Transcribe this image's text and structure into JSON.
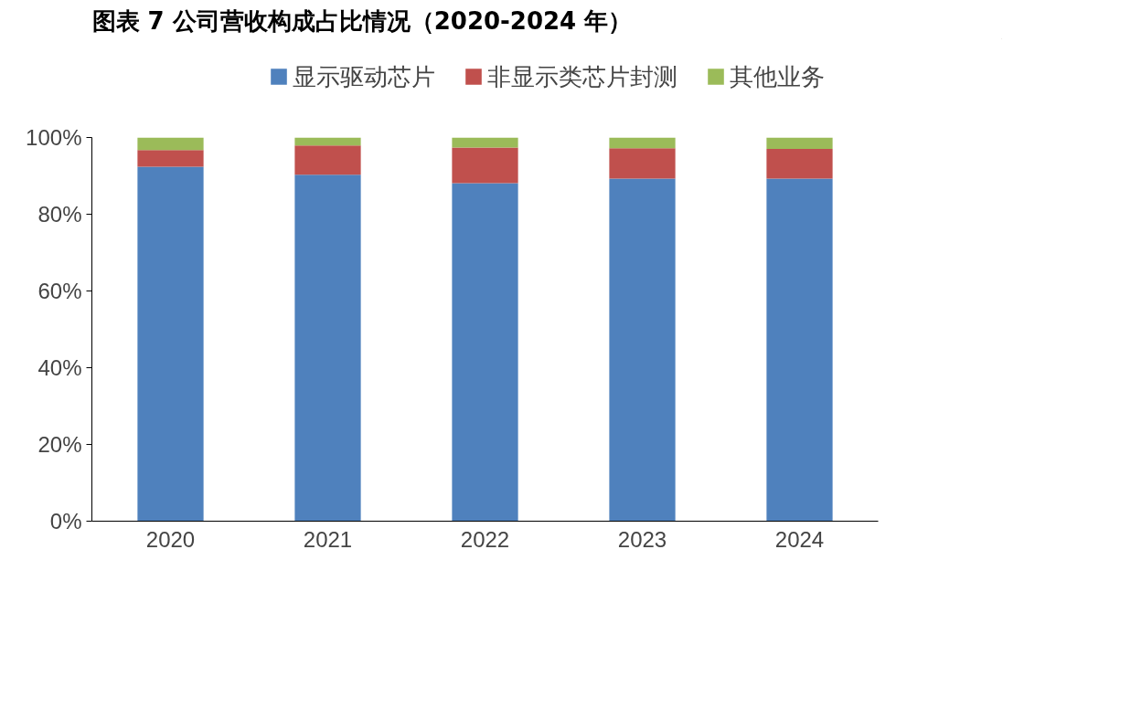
{
  "chart_data": {
    "type": "bar",
    "title": "图表 7  公司营收构成占比情况（2020-2024 年）",
    "categories": [
      "2020",
      "2021",
      "2022",
      "2023",
      "2024"
    ],
    "stacked": true,
    "series": [
      {
        "name": "显示驱动芯片",
        "color": "#4f81bd",
        "values": [
          92.4,
          90.3,
          88.1,
          89.3,
          89.3
        ]
      },
      {
        "name": "非显示类芯片封测",
        "color": "#c0504d",
        "values": [
          4.3,
          7.6,
          9.3,
          7.9,
          7.7
        ]
      },
      {
        "name": "其他业务",
        "color": "#9bbb59",
        "values": [
          3.3,
          2.1,
          2.6,
          2.8,
          3.0
        ]
      }
    ],
    "ylim": [
      0,
      100
    ],
    "yticks": [
      {
        "value": 0,
        "label": "0%"
      },
      {
        "value": 20,
        "label": "20%"
      },
      {
        "value": 40,
        "label": "40%"
      },
      {
        "value": 60,
        "label": "60%"
      },
      {
        "value": 80,
        "label": "80%"
      },
      {
        "value": 100,
        "label": "100%"
      }
    ],
    "grid": false,
    "legend": "top"
  }
}
